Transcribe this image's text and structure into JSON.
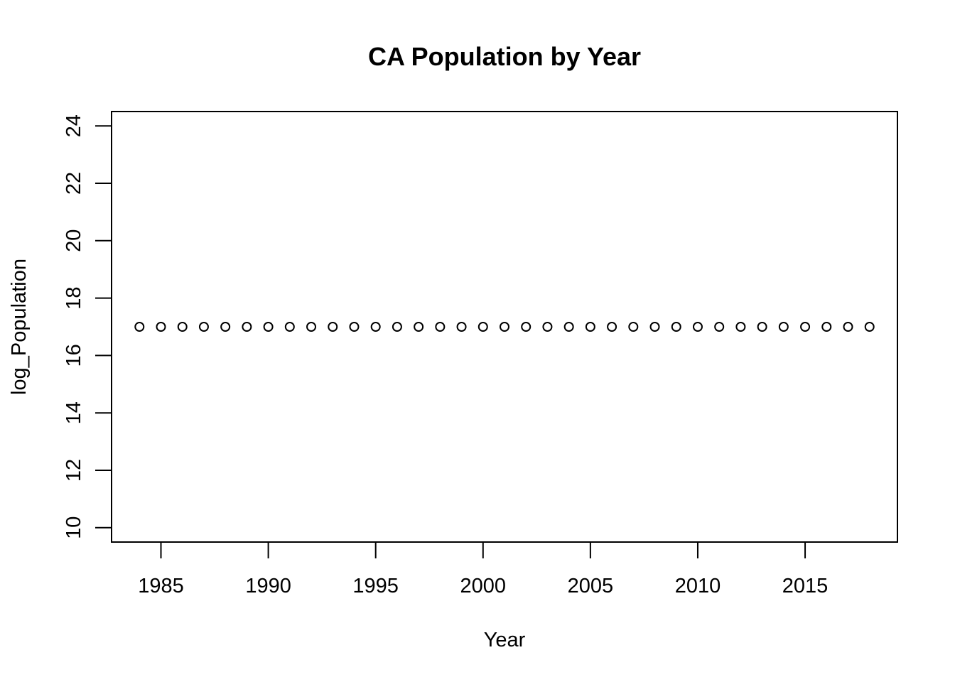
{
  "chart_data": {
    "type": "scatter",
    "title": "CA Population by Year",
    "xlabel": "Year",
    "ylabel": "log_Population",
    "xlim": [
      1982.7,
      2019.3
    ],
    "ylim": [
      9.5,
      24.5
    ],
    "x_ticks": [
      1985,
      1990,
      1995,
      2000,
      2005,
      2010,
      2015
    ],
    "y_ticks": [
      10,
      12,
      14,
      16,
      18,
      20,
      22,
      24
    ],
    "grid": false,
    "legend": "none",
    "series": [
      {
        "x": [
          1984,
          1985,
          1986,
          1987,
          1988,
          1989,
          1990,
          1991,
          1992,
          1993,
          1994,
          1995,
          1996,
          1997,
          1998,
          1999,
          2000,
          2001,
          2002,
          2003,
          2004,
          2005,
          2006,
          2007,
          2008,
          2009,
          2010,
          2011,
          2012,
          2013,
          2014,
          2015,
          2016,
          2017,
          2018
        ],
        "y": [
          17.0,
          17.0,
          17.0,
          17.0,
          17.0,
          17.0,
          17.0,
          17.0,
          17.0,
          17.0,
          17.0,
          17.0,
          17.0,
          17.0,
          17.0,
          17.0,
          17.0,
          17.0,
          17.0,
          17.0,
          17.0,
          17.0,
          17.0,
          17.0,
          17.0,
          17.0,
          17.0,
          17.0,
          17.0,
          17.0,
          17.0,
          17.0,
          17.0,
          17.0,
          17.0
        ]
      }
    ]
  }
}
